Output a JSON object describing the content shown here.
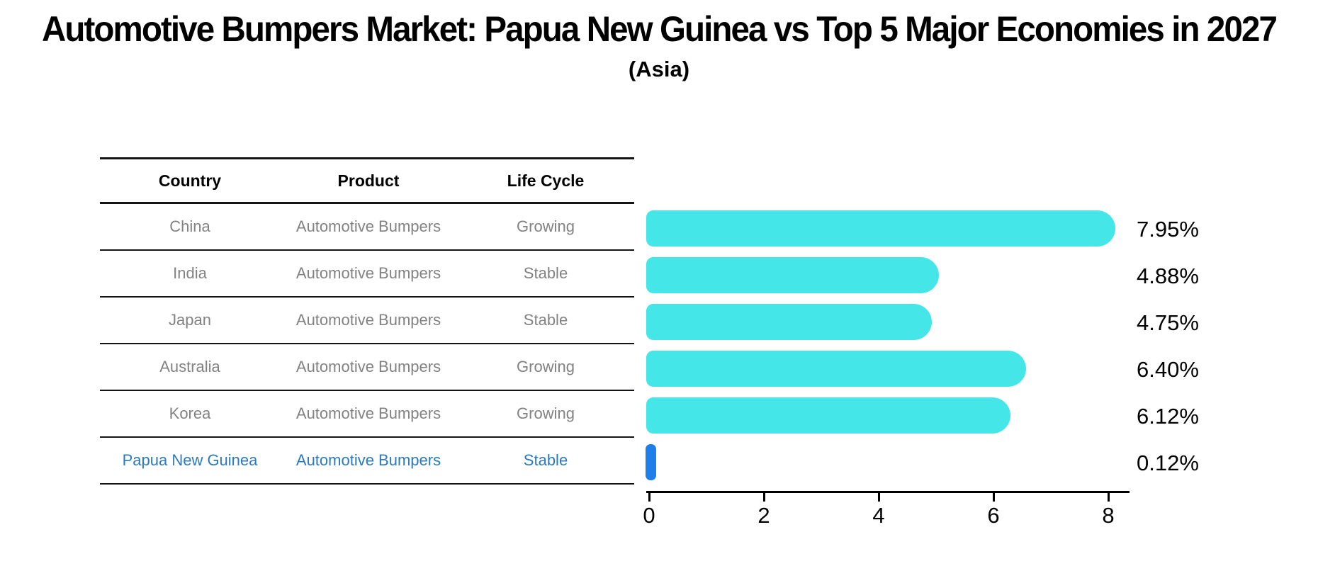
{
  "title": "Automotive Bumpers Market: Papua New Guinea vs Top 5 Major Economies in 2027",
  "subtitle": "(Asia)",
  "table": {
    "headers": [
      "Country",
      "Product",
      "Life Cycle"
    ],
    "rows": [
      {
        "country": "China",
        "product": "Automotive Bumpers",
        "life_cycle": "Growing",
        "highlight": false
      },
      {
        "country": "India",
        "product": "Automotive Bumpers",
        "life_cycle": "Stable",
        "highlight": false
      },
      {
        "country": "Japan",
        "product": "Automotive Bumpers",
        "life_cycle": "Stable",
        "highlight": false
      },
      {
        "country": "Australia",
        "product": "Automotive Bumpers",
        "life_cycle": "Growing",
        "highlight": false
      },
      {
        "country": "Korea",
        "product": "Automotive Bumpers",
        "life_cycle": "Growing",
        "highlight": false
      },
      {
        "country": "Papua New Guinea",
        "product": "Automotive Bumpers",
        "life_cycle": "Stable",
        "highlight": true
      }
    ]
  },
  "chart_data": {
    "type": "bar",
    "orientation": "horizontal",
    "title": "Automotive Bumpers Market: Papua New Guinea vs Top 5 Major Economies in 2027",
    "subtitle": "(Asia)",
    "categories": [
      "China",
      "India",
      "Japan",
      "Australia",
      "Korea",
      "Papua New Guinea"
    ],
    "values": [
      7.95,
      4.88,
      4.75,
      6.4,
      6.12,
      0.12
    ],
    "value_labels": [
      "7.95%",
      "4.88%",
      "4.75%",
      "6.40%",
      "6.12%",
      "0.12%"
    ],
    "xlim": [
      0,
      8.4
    ],
    "xticks": [
      0,
      2,
      4,
      6,
      8
    ],
    "grid": false,
    "legend": false,
    "highlight_index": 5
  },
  "colors": {
    "bar": "#45e6e8",
    "highlight_bar": "#1f7fe8",
    "highlight_text": "#2b7ac1",
    "body_text": "#828282",
    "axis": "#000000"
  }
}
